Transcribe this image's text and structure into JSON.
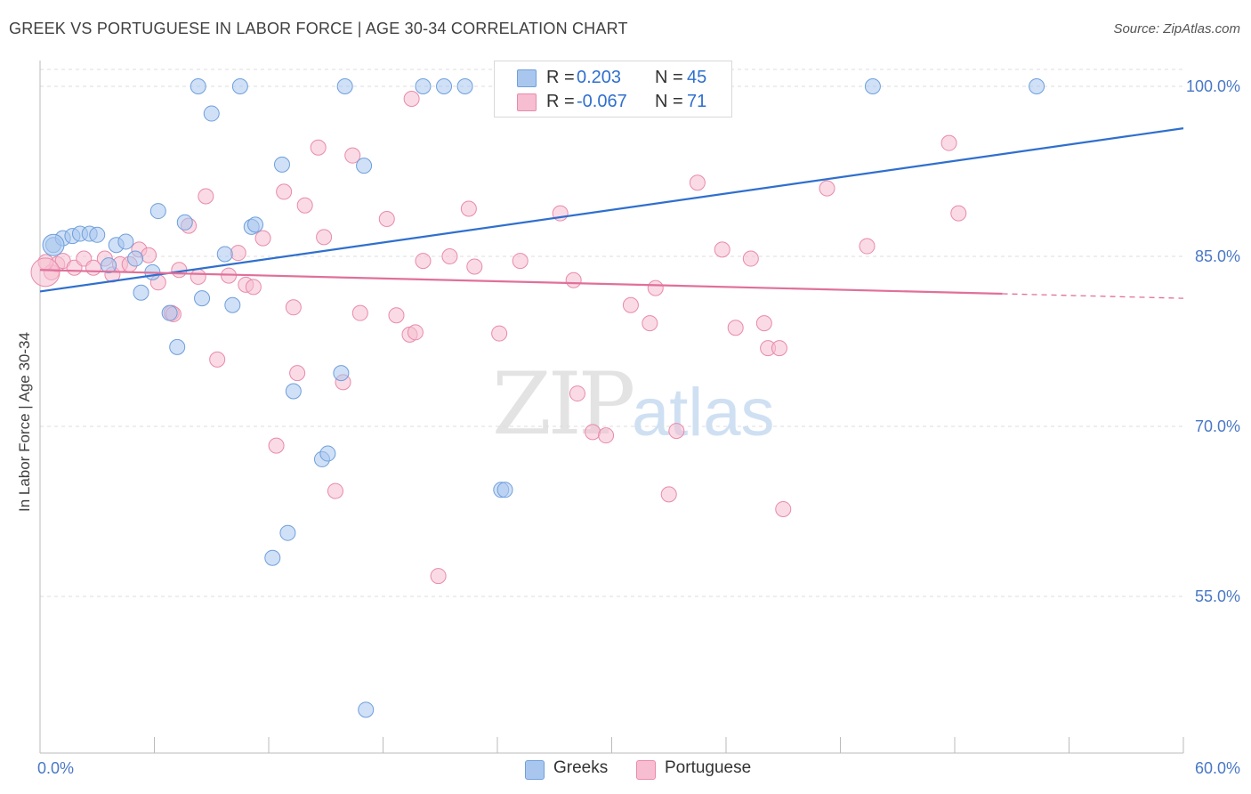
{
  "header": {
    "title": "GREEK VS PORTUGUESE IN LABOR FORCE | AGE 30-34 CORRELATION CHART",
    "source": "Source: ZipAtlas.com"
  },
  "watermark": {
    "zip": "ZIP",
    "atlas": "atlas"
  },
  "legend": {
    "greeks": {
      "r_label": "R =",
      "r_value": "0.203",
      "n_label": "N =",
      "n_value": "45"
    },
    "portuguese": {
      "r_label": "R =",
      "r_value": "-0.067",
      "n_label": "N =",
      "n_value": "71"
    }
  },
  "bottom_legend": {
    "greeks": "Greeks",
    "portuguese": "Portuguese"
  },
  "colors": {
    "greeks_fill": "#a9c7ee",
    "greeks_stroke": "#6e9fdc",
    "greeks_line": "#2f6fce",
    "portuguese_fill": "#f6bed0",
    "portuguese_stroke": "#e98aaa",
    "portuguese_line": "#e0709a",
    "axis_text": "#4a78c5",
    "grid": "#dddddd"
  },
  "chart_data": {
    "type": "scatter",
    "title": "GREEK VS PORTUGUESE IN LABOR FORCE | AGE 30-34 CORRELATION CHART",
    "xlabel": "",
    "ylabel": "In Labor Force | Age 30-34",
    "xlim": [
      0,
      60
    ],
    "ylim": [
      40,
      102
    ],
    "x_tick_labels": [
      "0.0%",
      "60.0%"
    ],
    "y_ticks": [
      55,
      70,
      85,
      100
    ],
    "y_tick_labels": [
      "55.0%",
      "70.0%",
      "85.0%",
      "100.0%"
    ],
    "grid": true,
    "legend_position": "top-center",
    "series": [
      {
        "name": "Greeks",
        "r": 0.203,
        "n": 45,
        "trend": {
          "x": [
            0,
            60
          ],
          "y": [
            81.9,
            96.3
          ]
        },
        "points": [
          [
            0.7,
            86.0
          ],
          [
            1.2,
            86.6
          ],
          [
            1.7,
            86.8
          ],
          [
            2.1,
            87.0
          ],
          [
            2.6,
            87.0
          ],
          [
            3.0,
            86.9
          ],
          [
            4.0,
            86.0
          ],
          [
            4.5,
            86.3
          ],
          [
            3.6,
            84.2
          ],
          [
            5.0,
            84.8
          ],
          [
            5.3,
            81.8
          ],
          [
            5.9,
            83.6
          ],
          [
            6.2,
            89.0
          ],
          [
            6.8,
            80.0
          ],
          [
            7.2,
            77.0
          ],
          [
            7.6,
            88.0
          ],
          [
            8.3,
            100.0
          ],
          [
            8.5,
            81.3
          ],
          [
            9.0,
            97.6
          ],
          [
            9.7,
            85.2
          ],
          [
            10.1,
            80.7
          ],
          [
            10.5,
            100.0
          ],
          [
            11.1,
            87.6
          ],
          [
            11.3,
            87.8
          ],
          [
            12.2,
            58.4
          ],
          [
            12.7,
            93.1
          ],
          [
            13.0,
            60.6
          ],
          [
            13.3,
            73.1
          ],
          [
            14.8,
            67.1
          ],
          [
            15.1,
            67.6
          ],
          [
            15.8,
            74.7
          ],
          [
            16.0,
            100.0
          ],
          [
            17.0,
            93.0
          ],
          [
            17.1,
            45.0
          ],
          [
            20.1,
            100.0
          ],
          [
            21.2,
            100.0
          ],
          [
            22.3,
            100.0
          ],
          [
            24.2,
            64.4
          ],
          [
            24.4,
            64.4
          ],
          [
            25.2,
            100.0
          ],
          [
            26.1,
            100.0
          ],
          [
            27.8,
            100.0
          ],
          [
            34.1,
            100.0
          ],
          [
            43.7,
            100.0
          ],
          [
            52.3,
            100.0
          ]
        ]
      },
      {
        "name": "Portuguese",
        "r": -0.067,
        "n": 71,
        "trend": {
          "x": [
            0,
            50.5
          ],
          "y": [
            83.8,
            81.7
          ]
        },
        "trend_dashed": {
          "x": [
            50.5,
            60
          ],
          "y": [
            81.7,
            81.3
          ]
        },
        "points": [
          [
            0.6,
            83.6
          ],
          [
            0.9,
            84.3
          ],
          [
            1.2,
            84.6
          ],
          [
            1.8,
            84.0
          ],
          [
            2.3,
            84.8
          ],
          [
            2.8,
            84.0
          ],
          [
            3.4,
            84.8
          ],
          [
            3.8,
            83.4
          ],
          [
            4.2,
            84.3
          ],
          [
            4.7,
            84.3
          ],
          [
            5.2,
            85.6
          ],
          [
            5.7,
            85.1
          ],
          [
            6.2,
            82.7
          ],
          [
            6.9,
            80.0
          ],
          [
            7.3,
            83.8
          ],
          [
            7.8,
            87.7
          ],
          [
            8.3,
            83.2
          ],
          [
            8.7,
            90.3
          ],
          [
            9.3,
            75.9
          ],
          [
            9.9,
            83.3
          ],
          [
            10.4,
            85.3
          ],
          [
            10.8,
            82.5
          ],
          [
            11.2,
            82.3
          ],
          [
            11.7,
            86.6
          ],
          [
            12.4,
            68.3
          ],
          [
            12.8,
            90.7
          ],
          [
            13.5,
            74.7
          ],
          [
            13.9,
            89.5
          ],
          [
            14.6,
            94.6
          ],
          [
            14.9,
            86.7
          ],
          [
            15.5,
            64.3
          ],
          [
            15.9,
            73.9
          ],
          [
            16.4,
            93.9
          ],
          [
            16.8,
            80.0
          ],
          [
            18.2,
            88.3
          ],
          [
            18.7,
            79.8
          ],
          [
            19.4,
            78.1
          ],
          [
            19.5,
            98.9
          ],
          [
            20.1,
            84.6
          ],
          [
            20.9,
            56.8
          ],
          [
            21.5,
            85.0
          ],
          [
            22.5,
            89.2
          ],
          [
            22.8,
            84.1
          ],
          [
            24.1,
            78.2
          ],
          [
            25.2,
            84.6
          ],
          [
            27.3,
            88.8
          ],
          [
            28.0,
            82.9
          ],
          [
            28.2,
            72.9
          ],
          [
            29.0,
            69.5
          ],
          [
            29.7,
            69.2
          ],
          [
            31.0,
            80.7
          ],
          [
            32.0,
            79.1
          ],
          [
            32.3,
            82.2
          ],
          [
            33.0,
            64.0
          ],
          [
            33.4,
            69.6
          ],
          [
            34.5,
            91.5
          ],
          [
            35.8,
            85.6
          ],
          [
            36.5,
            78.7
          ],
          [
            37.3,
            84.8
          ],
          [
            38.0,
            79.1
          ],
          [
            38.2,
            76.9
          ],
          [
            38.8,
            76.9
          ],
          [
            39.0,
            62.7
          ],
          [
            41.3,
            91.0
          ],
          [
            43.4,
            85.9
          ],
          [
            47.7,
            95.0
          ],
          [
            48.2,
            88.8
          ],
          [
            0.3,
            84.5
          ],
          [
            7.0,
            79.9
          ],
          [
            13.3,
            80.5
          ],
          [
            19.7,
            78.3
          ]
        ]
      }
    ]
  }
}
